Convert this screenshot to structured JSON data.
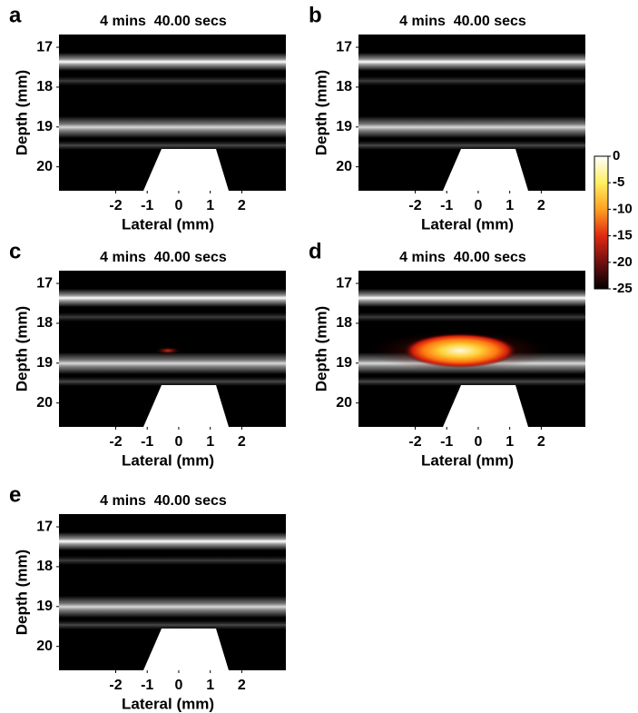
{
  "panels": [
    {
      "label": "a",
      "title": "4 mins  40.00 secs",
      "xlabel": "Lateral (mm)",
      "ylabel": "Depth (mm)",
      "xlim": [
        -3.8,
        3.4
      ],
      "ylim": [
        16.68,
        20.6
      ],
      "xticks": [
        -2,
        -1,
        0,
        1,
        2
      ],
      "yticks": [
        17,
        18,
        19,
        20
      ]
    },
    {
      "label": "b",
      "title": "4 mins  40.00 secs",
      "xlabel": "Lateral (mm)",
      "ylabel": "Depth (mm)",
      "xlim": [
        -3.8,
        3.4
      ],
      "ylim": [
        16.68,
        20.6
      ],
      "xticks": [
        -2,
        -1,
        0,
        1,
        2
      ],
      "yticks": [
        17,
        18,
        19,
        20
      ]
    },
    {
      "label": "c",
      "title": "4 mins  40.00 secs",
      "xlabel": "Lateral (mm)",
      "ylabel": "Depth (mm)",
      "xlim": [
        -3.8,
        3.4
      ],
      "ylim": [
        16.68,
        20.6
      ],
      "xticks": [
        -2,
        -1,
        0,
        1,
        2
      ],
      "yticks": [
        17,
        18,
        19,
        20
      ]
    },
    {
      "label": "d",
      "title": "4 mins  40.00 secs",
      "xlabel": "Lateral (mm)",
      "ylabel": "Depth (mm)",
      "xlim": [
        -3.8,
        3.4
      ],
      "ylim": [
        16.68,
        20.6
      ],
      "xticks": [
        -2,
        -1,
        0,
        1,
        2
      ],
      "yticks": [
        17,
        18,
        19,
        20
      ]
    },
    {
      "label": "e",
      "title": "4 mins  40.00 secs",
      "xlabel": "Lateral (mm)",
      "ylabel": "Depth (mm)",
      "xlim": [
        -3.8,
        3.4
      ],
      "ylim": [
        16.68,
        20.6
      ],
      "xticks": [
        -2,
        -1,
        0,
        1,
        2
      ],
      "yticks": [
        17,
        18,
        19,
        20
      ]
    }
  ],
  "colorbar": {
    "lim": [
      -25,
      0
    ],
    "ticks": [
      0,
      -5,
      -10,
      -15,
      -20,
      -25
    ]
  }
}
